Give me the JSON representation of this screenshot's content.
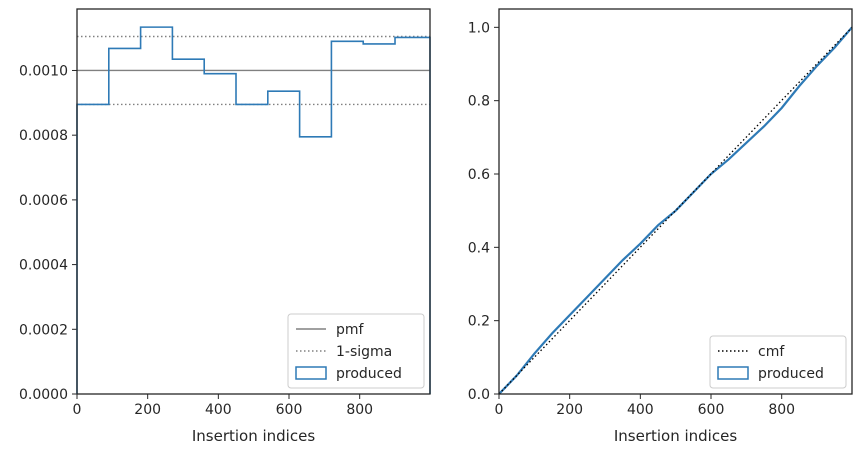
{
  "chart_data": [
    {
      "type": "step",
      "xlabel": "Insertion indices",
      "ylabel": "",
      "xlim": [
        0,
        999
      ],
      "ylim": [
        0,
        0.00119
      ],
      "xticks": [
        0,
        200,
        400,
        600,
        800
      ],
      "xtick_labels": [
        "0",
        "200",
        "400",
        "600",
        "800"
      ],
      "yticks": [
        0,
        0.0002,
        0.0004,
        0.0006,
        0.0008,
        0.001
      ],
      "ytick_labels": [
        "0.0000",
        "0.0002",
        "0.0004",
        "0.0006",
        "0.0008",
        "0.0010"
      ],
      "grid": false,
      "legend_position": "lower-right",
      "pmf": {
        "name": "pmf",
        "value": 0.001,
        "color": "#808080"
      },
      "sigma": {
        "name": "1-sigma",
        "values": [
          0.000895,
          0.001105
        ],
        "color": "#808080"
      },
      "series": [
        {
          "name": "produced",
          "color": "#2e7ab6",
          "bin_edges": [
            0,
            90,
            180,
            270,
            360,
            450,
            540,
            630,
            720,
            810,
            900,
            999
          ],
          "values": [
            0.000895,
            0.001068,
            0.001134,
            0.001035,
            0.00099,
            0.000895,
            0.000936,
            0.000795,
            0.00109,
            0.001082,
            0.001102
          ]
        }
      ]
    },
    {
      "type": "line",
      "xlabel": "Insertion indices",
      "ylabel": "",
      "xlim": [
        0,
        999
      ],
      "ylim": [
        0,
        1.05
      ],
      "xticks": [
        0,
        200,
        400,
        600,
        800
      ],
      "xtick_labels": [
        "0",
        "200",
        "400",
        "600",
        "800"
      ],
      "yticks": [
        0,
        0.2,
        0.4,
        0.6,
        0.8,
        1.0
      ],
      "ytick_labels": [
        "0.0",
        "0.2",
        "0.4",
        "0.6",
        "0.8",
        "1.0"
      ],
      "grid": false,
      "legend_position": "lower-right",
      "cmf": {
        "name": "cmf",
        "x": [
          0,
          999
        ],
        "y": [
          0,
          1.0
        ],
        "color": "#000000"
      },
      "series": [
        {
          "name": "produced",
          "color": "#2e7ab6",
          "x": [
            0,
            50,
            100,
            150,
            200,
            250,
            300,
            350,
            400,
            450,
            500,
            550,
            600,
            650,
            700,
            750,
            800,
            850,
            900,
            950,
            999
          ],
          "y": [
            0,
            0.05,
            0.11,
            0.165,
            0.215,
            0.265,
            0.315,
            0.365,
            0.41,
            0.46,
            0.5,
            0.55,
            0.6,
            0.64,
            0.685,
            0.73,
            0.78,
            0.84,
            0.895,
            0.945,
            1.0
          ]
        }
      ]
    }
  ]
}
